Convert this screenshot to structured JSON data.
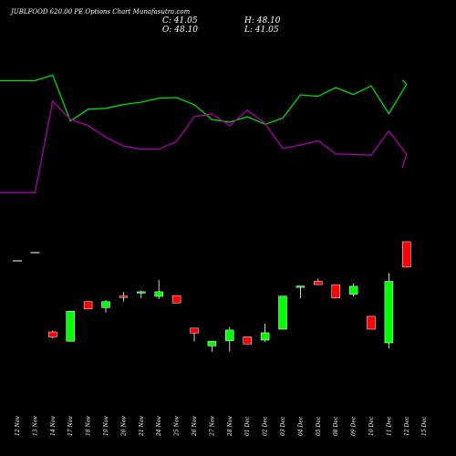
{
  "header": {
    "title": "JUBLFOOD 620.00 PE Options Chart Munafasutra.com",
    "close_label": "C: 41.05",
    "open_label": "O: 48.10",
    "high_label": "H: 48.10",
    "low_label": "L: 41.05"
  },
  "colors": {
    "up": "#00ff00",
    "down": "#ff0000",
    "wick": "#ffffff",
    "green_line": "#00dd00",
    "purple_line": "#aa00aa",
    "background": "#000000"
  },
  "chart_data": {
    "type": "candlestick",
    "categories": [
      "12 Nov",
      "13 Nov",
      "14 Nov",
      "17 Nov",
      "18 Nov",
      "19 Nov",
      "20 Nov",
      "21 Nov",
      "24 Nov",
      "25 Nov",
      "26 Nov",
      "27 Nov",
      "28 Nov",
      "01 Dec",
      "02 Dec",
      "03 Dec",
      "04 Dec",
      "05 Dec",
      "08 Dec",
      "09 Dec",
      "10 Dec",
      "11 Dec",
      "12 Dec",
      "15 Dec"
    ],
    "candles": [
      {
        "o": null,
        "h": null,
        "l": null,
        "c": 63.0,
        "flat": true
      },
      {
        "o": null,
        "h": null,
        "l": null,
        "c": 66.0,
        "flat": true
      },
      {
        "o": 37.0,
        "h": 37.5,
        "l": 34.7,
        "c": 35.2
      },
      {
        "o": 33.6,
        "h": 44.6,
        "l": 33.6,
        "c": 44.6
      },
      {
        "o": 48.1,
        "h": 48.1,
        "l": 45.4,
        "c": 45.4
      },
      {
        "o": 45.9,
        "h": 48.6,
        "l": 44.1,
        "c": 48.1
      },
      {
        "o": 50.1,
        "h": 51.6,
        "l": 48.1,
        "c": 49.7
      },
      {
        "o": 51.7,
        "h": 52.2,
        "l": 49.3,
        "c": 51.7
      },
      {
        "o": 50.0,
        "h": 56.0,
        "l": 49.0,
        "c": 51.7
      },
      {
        "o": 50.3,
        "h": 50.3,
        "l": 47.6,
        "c": 47.6
      },
      {
        "o": 38.4,
        "h": 38.4,
        "l": 33.5,
        "c": 36.6
      },
      {
        "o": 31.9,
        "h": 33.6,
        "l": 29.8,
        "c": 33.6
      },
      {
        "o": 33.8,
        "h": 38.8,
        "l": 29.8,
        "c": 37.7
      },
      {
        "o": 35.2,
        "h": 35.2,
        "l": 32.6,
        "c": 32.6
      },
      {
        "o": 34.0,
        "h": 40.0,
        "l": 33.5,
        "c": 36.7
      },
      {
        "o": 38.0,
        "h": 50.1,
        "l": 38.0,
        "c": 50.1
      },
      {
        "o": 53.8,
        "h": 53.8,
        "l": 49.3,
        "c": 53.8
      },
      {
        "o": 55.5,
        "h": 56.5,
        "l": 54.3,
        "c": 54.3
      },
      {
        "o": 54.3,
        "h": 54.3,
        "l": 49.4,
        "c": 49.4
      },
      {
        "o": 50.8,
        "h": 54.7,
        "l": 50.0,
        "c": 53.7
      },
      {
        "o": 42.7,
        "h": 42.7,
        "l": 38.0,
        "c": 38.0
      },
      {
        "o": 33.0,
        "h": 58.5,
        "l": 31.0,
        "c": 55.5
      },
      {
        "o": 70.0,
        "h": 70.0,
        "l": 60.7,
        "c": 60.7
      },
      {
        "o": null,
        "h": null,
        "l": null,
        "c": null,
        "flat": true,
        "skip": true
      }
    ],
    "green_line": [
      80.8,
      80.8,
      83.8,
      58.6,
      65.1,
      65.6,
      67.7,
      69.0,
      71.2,
      71.5,
      67.6,
      59.5,
      58.0,
      61.0,
      56.9,
      60.2,
      73.0,
      72.2,
      77.0,
      73.2,
      77.9,
      62.7,
      78.8,
      81.1
    ],
    "purple_line": [
      19.4,
      19.4,
      69.5,
      59.6,
      56.2,
      49.8,
      44.9,
      43.2,
      43.2,
      47.4,
      61.0,
      62.6,
      56.1,
      64.6,
      57.4,
      43.6,
      45.5,
      47.9,
      40.6,
      40.3,
      39.9,
      53.2,
      40.3,
      33.0
    ]
  }
}
